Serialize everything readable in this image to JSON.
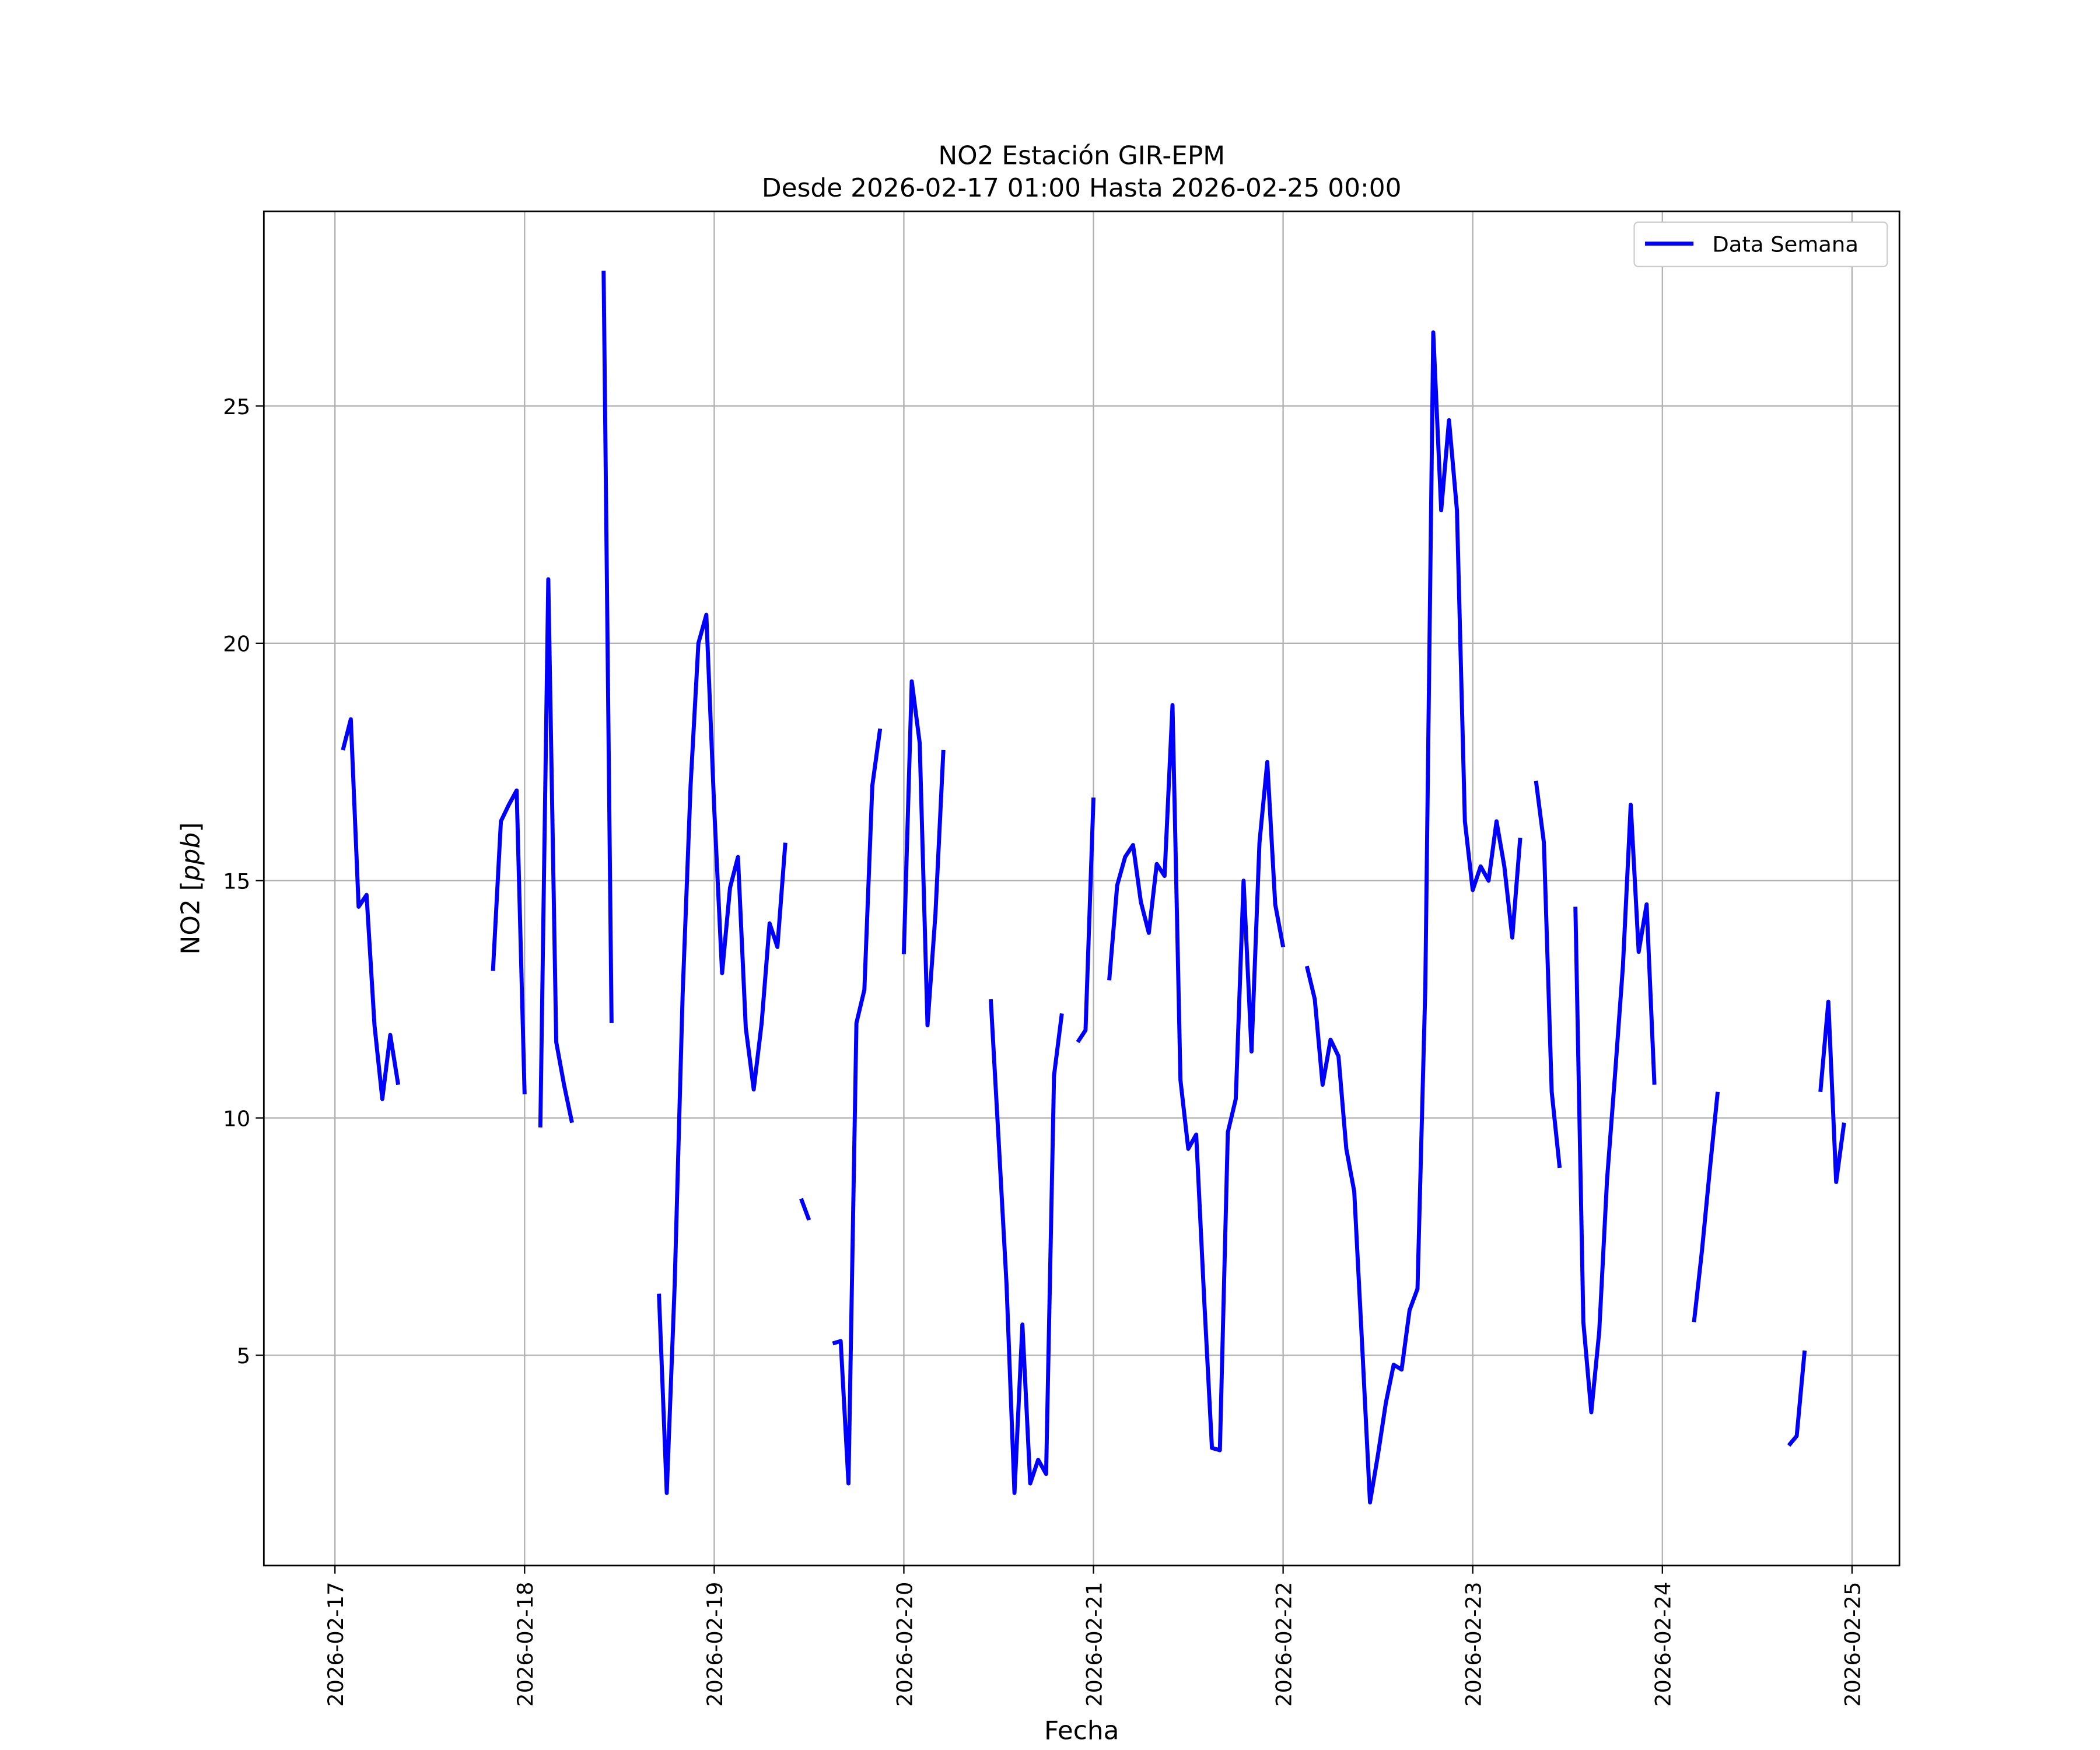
{
  "chart_data": {
    "type": "line",
    "title": "NO2 Estación GIR-EPM",
    "subtitle": "Desde 2026-02-17 01:00 Hasta 2026-02-25 00:00",
    "xlabel": "Fecha",
    "ylabel": "NO2 [ppb]",
    "ylabel_plain": "NO2 [",
    "ylabel_italic": "ppb",
    "ylabel_close": "]",
    "xlim": [
      "2026-02-16T15:00",
      "2026-02-25T06:00"
    ],
    "ylim": [
      0.57,
      29.1
    ],
    "grid": true,
    "legend": {
      "position": "top-right",
      "entries": [
        "Data Semana"
      ]
    },
    "xticks": [
      "2026-02-17",
      "2026-02-18",
      "2026-02-19",
      "2026-02-20",
      "2026-02-21",
      "2026-02-22",
      "2026-02-23",
      "2026-02-24",
      "2026-02-25"
    ],
    "yticks": [
      5,
      10,
      15,
      20,
      25
    ],
    "color": "#0000ff",
    "series": [
      {
        "name": "Data Semana",
        "interval_hours": 1,
        "start": "2026-02-17T00:00",
        "segments": [
          {
            "start_hour": 1,
            "values": [
              17.75,
              18.4,
              14.45,
              14.7,
              11.95,
              10.4,
              11.75,
              10.7
            ]
          },
          {
            "start_hour": 20,
            "values": [
              13.1,
              16.25,
              16.6,
              16.9,
              10.5
            ]
          },
          {
            "start_hour": 26,
            "values": [
              9.8,
              21.35,
              11.6,
              10.7,
              9.9
            ]
          },
          {
            "start_hour": 34,
            "values": [
              27.85,
              12.0
            ]
          },
          {
            "start_hour": 41,
            "values": [
              6.3,
              2.1,
              6.5,
              12.6,
              17.0,
              20.0,
              20.6,
              16.5,
              13.05,
              14.85,
              15.5,
              11.9,
              10.6,
              12.0,
              14.1,
              13.6,
              15.8
            ]
          },
          {
            "start_hour": 59,
            "values": [
              8.3,
              7.85
            ]
          },
          {
            "start_hour": 63,
            "values": [
              5.25,
              5.3,
              2.3,
              12.0,
              12.7,
              17.0,
              18.2
            ]
          },
          {
            "start_hour": 72,
            "values": [
              13.45,
              19.2,
              17.9,
              11.95,
              14.3,
              17.75
            ]
          },
          {
            "start_hour": 83,
            "values": [
              12.5,
              9.5,
              6.5,
              2.1,
              5.65,
              2.3,
              2.8,
              2.5,
              10.9,
              12.2
            ]
          },
          {
            "start_hour": 94,
            "values": [
              11.6,
              11.85,
              16.75
            ]
          },
          {
            "start_hour": 98,
            "values": [
              12.9,
              14.9,
              15.5,
              15.75,
              14.55,
              13.9,
              15.35,
              15.1,
              18.7,
              10.8,
              9.35,
              9.65,
              6.2,
              3.05,
              3.0,
              9.7,
              10.4,
              15.0,
              11.4,
              15.8,
              17.5,
              14.5,
              13.6
            ]
          },
          {
            "start_hour": 123,
            "values": [
              13.2,
              12.5,
              10.7,
              11.65,
              11.3,
              9.35,
              8.45,
              5.2,
              1.9,
              2.9,
              4.0,
              4.8,
              4.7,
              5.95,
              6.4,
              12.75,
              26.55,
              22.8,
              24.7,
              22.8,
              16.25,
              14.8,
              15.3,
              15.0,
              16.25,
              15.3,
              13.8,
              15.9
            ]
          },
          {
            "start_hour": 152,
            "values": [
              17.1,
              15.8,
              10.55,
              8.95
            ]
          },
          {
            "start_hour": 157,
            "values": [
              14.45,
              5.7,
              3.8,
              5.5,
              8.7,
              10.9,
              13.2,
              16.6,
              13.5,
              14.5,
              10.7
            ]
          },
          {
            "start_hour": 172,
            "values": [
              5.7,
              7.2,
              8.9,
              10.55
            ]
          },
          {
            "start_hour": 184,
            "values": [
              3.1,
              3.3,
              5.1
            ]
          },
          {
            "start_hour": 188,
            "values": [
              10.55,
              12.45,
              8.65,
              9.9
            ]
          }
        ]
      }
    ]
  }
}
